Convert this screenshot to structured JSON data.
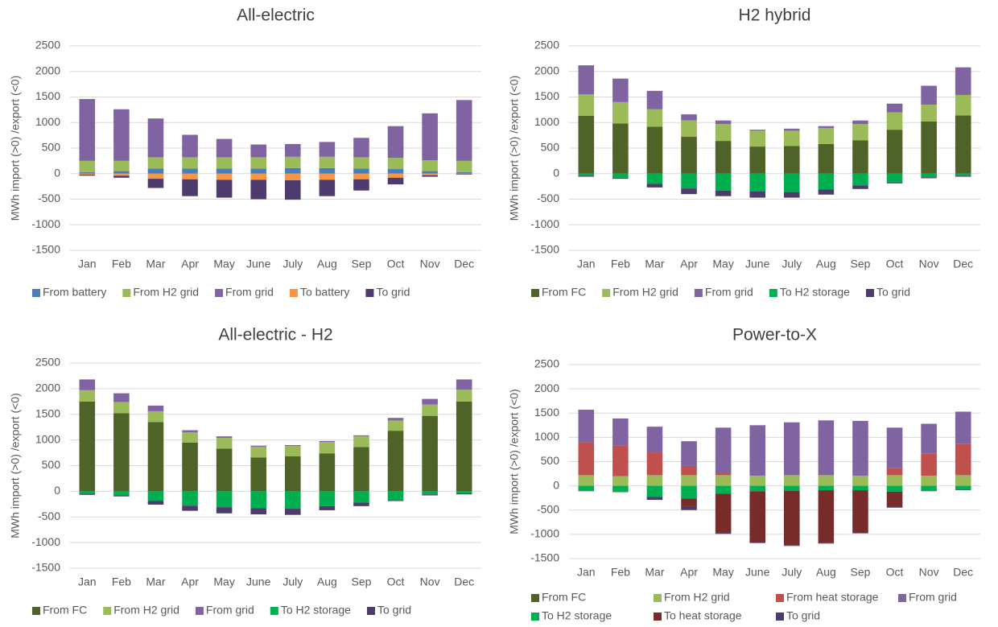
{
  "chart_data": [
    {
      "type": "bar",
      "stacked": true,
      "title": "All-electric",
      "y_label": "MWh import (>0) /export (<0)",
      "categories": [
        "Jan",
        "Feb",
        "Mar",
        "Apr",
        "May",
        "June",
        "July",
        "Aug",
        "Sep",
        "Oct",
        "Nov",
        "Dec"
      ],
      "ylim": [
        -1500,
        2500
      ],
      "yticks": [
        -1500,
        -1000,
        -500,
        0,
        500,
        1000,
        1500,
        2000,
        2500
      ],
      "grid": true,
      "legend": "bottom",
      "series": [
        {
          "name": "From battery",
          "color": "#4a7ebb",
          "values": [
            30,
            50,
            100,
            100,
            100,
            100,
            110,
            110,
            100,
            90,
            50,
            30
          ]
        },
        {
          "name": "From H2 grid",
          "color": "#9bbb59",
          "values": [
            220,
            200,
            220,
            220,
            220,
            220,
            220,
            220,
            220,
            220,
            210,
            220
          ]
        },
        {
          "name": "From grid",
          "color": "#8064a2",
          "values": [
            1210,
            1010,
            760,
            440,
            360,
            250,
            250,
            290,
            380,
            620,
            920,
            1190
          ]
        },
        {
          "name": "To battery",
          "color": "#f79646",
          "values": [
            -20,
            -40,
            -100,
            -110,
            -120,
            -120,
            -130,
            -120,
            -110,
            -80,
            -30,
            -10
          ]
        },
        {
          "name": "To grid",
          "color": "#4e3b6e",
          "values": [
            -20,
            -40,
            -180,
            -330,
            -350,
            -380,
            -380,
            -320,
            -220,
            -130,
            -30,
            -10
          ]
        }
      ]
    },
    {
      "type": "bar",
      "stacked": true,
      "title": "H2 hybrid",
      "y_label": "MWh import (>0) /export (<0)",
      "categories": [
        "Jan",
        "Feb",
        "Mar",
        "Apr",
        "May",
        "June",
        "July",
        "Aug",
        "Sep",
        "Oct",
        "Nov",
        "Dec"
      ],
      "ylim": [
        -1500,
        2500
      ],
      "yticks": [
        -1500,
        -1000,
        -500,
        0,
        500,
        1000,
        1500,
        2000,
        2500
      ],
      "grid": true,
      "legend": "bottom",
      "series": [
        {
          "name": "From FC",
          "color": "#4f6228",
          "values": [
            1130,
            980,
            920,
            720,
            640,
            530,
            540,
            580,
            650,
            860,
            1020,
            1140
          ]
        },
        {
          "name": "From H2 grid",
          "color": "#9bbb59",
          "values": [
            420,
            420,
            340,
            320,
            330,
            310,
            300,
            310,
            320,
            340,
            330,
            400
          ]
        },
        {
          "name": "From grid",
          "color": "#8064a2",
          "values": [
            570,
            460,
            360,
            120,
            70,
            20,
            40,
            40,
            70,
            170,
            370,
            540
          ]
        },
        {
          "name": "To H2 storage",
          "color": "#00b050",
          "values": [
            -40,
            -80,
            -200,
            -290,
            -330,
            -350,
            -360,
            -310,
            -230,
            -170,
            -70,
            -40
          ]
        },
        {
          "name": "To grid",
          "color": "#4e3b6e",
          "values": [
            -20,
            -20,
            -70,
            -110,
            -110,
            -120,
            -110,
            -100,
            -70,
            -20,
            -20,
            -20
          ]
        }
      ]
    },
    {
      "type": "bar",
      "stacked": true,
      "title": "All-electric - H2",
      "y_label": "MWh import (>0) /export (<0)",
      "categories": [
        "Jan",
        "Feb",
        "Mar",
        "Apr",
        "May",
        "June",
        "July",
        "Aug",
        "Sep",
        "Oct",
        "Nov",
        "Dec"
      ],
      "ylim": [
        -1500,
        2500
      ],
      "yticks": [
        -1500,
        -1000,
        -500,
        0,
        500,
        1000,
        1500,
        2000,
        2500
      ],
      "grid": true,
      "legend": "bottom",
      "series": [
        {
          "name": "From FC",
          "color": "#4f6228",
          "values": [
            1750,
            1520,
            1350,
            950,
            830,
            660,
            680,
            740,
            860,
            1180,
            1470,
            1750
          ]
        },
        {
          "name": "From H2 grid",
          "color": "#9bbb59",
          "values": [
            220,
            220,
            210,
            200,
            210,
            210,
            200,
            220,
            210,
            200,
            220,
            230
          ]
        },
        {
          "name": "From grid",
          "color": "#8064a2",
          "values": [
            210,
            170,
            110,
            40,
            30,
            20,
            20,
            20,
            20,
            50,
            110,
            200
          ]
        },
        {
          "name": "To H2 storage",
          "color": "#00b050",
          "values": [
            -50,
            -80,
            -190,
            -280,
            -310,
            -330,
            -340,
            -290,
            -220,
            -170,
            -60,
            -40
          ]
        },
        {
          "name": "To grid",
          "color": "#4e3b6e",
          "values": [
            -20,
            -20,
            -70,
            -100,
            -120,
            -120,
            -120,
            -80,
            -70,
            -20,
            -20,
            -20
          ]
        }
      ]
    },
    {
      "type": "bar",
      "stacked": true,
      "title": "Power-to-X",
      "y_label": "MWh import (>0) /export (<0)",
      "categories": [
        "Jan",
        "Feb",
        "Mar",
        "Apr",
        "May",
        "June",
        "July",
        "Aug",
        "Sep",
        "Oct",
        "Nov",
        "Dec"
      ],
      "ylim": [
        -1500,
        2500
      ],
      "yticks": [
        -1500,
        -1000,
        -500,
        0,
        500,
        1000,
        1500,
        2000,
        2500
      ],
      "grid": true,
      "legend": "bottom",
      "series": [
        {
          "name": "From FC",
          "color": "#4f6228",
          "values": [
            0,
            0,
            0,
            0,
            0,
            0,
            0,
            0,
            0,
            0,
            0,
            0
          ]
        },
        {
          "name": "From H2 grid",
          "color": "#9bbb59",
          "values": [
            220,
            200,
            220,
            220,
            220,
            210,
            220,
            220,
            210,
            220,
            210,
            220
          ]
        },
        {
          "name": "From heat storage",
          "color": "#c0504d",
          "values": [
            680,
            630,
            470,
            190,
            40,
            0,
            0,
            0,
            0,
            150,
            460,
            640
          ]
        },
        {
          "name": "From grid",
          "color": "#8064a2",
          "values": [
            670,
            560,
            530,
            510,
            940,
            1040,
            1090,
            1130,
            1130,
            830,
            610,
            670
          ]
        },
        {
          "name": "To H2 storage",
          "color": "#00b050",
          "values": [
            -100,
            -120,
            -230,
            -260,
            -160,
            -110,
            -100,
            -90,
            -90,
            -120,
            -100,
            -80
          ]
        },
        {
          "name": "To heat storage",
          "color": "#772c2a",
          "values": [
            0,
            0,
            0,
            -160,
            -800,
            -1060,
            -1130,
            -1090,
            -880,
            -310,
            0,
            0
          ]
        },
        {
          "name": "To grid",
          "color": "#4e3b6e",
          "values": [
            -10,
            -10,
            -60,
            -80,
            -30,
            -10,
            -10,
            -10,
            -10,
            -20,
            -10,
            -10
          ]
        }
      ]
    }
  ]
}
